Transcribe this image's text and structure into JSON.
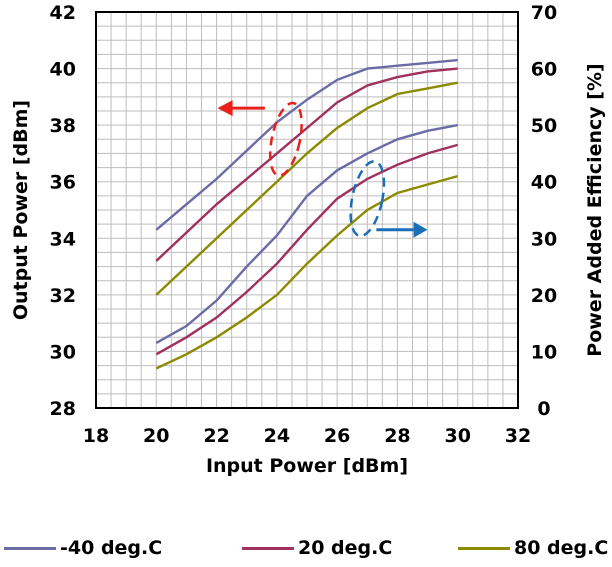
{
  "chart_data": {
    "type": "line",
    "xlabel": "Input Power [dBm]",
    "ylabel_left": "Output Power [dBm]",
    "ylabel_right": "Power Added Efficiency [%]",
    "xlim": [
      18,
      32
    ],
    "ylim_left": [
      28,
      42
    ],
    "ylim_right": [
      0,
      70
    ],
    "x_ticks": [
      "18",
      "20",
      "22",
      "24",
      "26",
      "28",
      "30",
      "32"
    ],
    "y_left_ticks": [
      "28",
      "30",
      "32",
      "34",
      "36",
      "38",
      "40",
      "42"
    ],
    "y_right_ticks": [
      "0",
      "10",
      "20",
      "30",
      "40",
      "50",
      "60",
      "70"
    ],
    "grid": true,
    "legend_position": "bottom",
    "colors": {
      "-40 deg.C": "#6b6ba6",
      "20 deg.C": "#a0305e",
      "80 deg.C": "#8c8a00"
    },
    "annotations": [
      {
        "text": "left-arrow",
        "marks": "Output Power curves (left axis)",
        "color": "#e8201a"
      },
      {
        "text": "right-arrow",
        "marks": "PAE curves (right axis)",
        "color": "#1a6fb8"
      }
    ],
    "series": [
      {
        "name": "-40 deg.C",
        "axis": "left",
        "x": [
          20,
          21,
          22,
          23,
          24,
          25,
          26,
          27,
          28,
          29,
          30
        ],
        "y": [
          34.3,
          35.2,
          36.1,
          37.1,
          38.1,
          38.9,
          39.6,
          40.0,
          40.1,
          40.2,
          40.3
        ]
      },
      {
        "name": "20 deg.C",
        "axis": "left",
        "x": [
          20,
          21,
          22,
          23,
          24,
          25,
          26,
          27,
          28,
          29,
          30
        ],
        "y": [
          33.2,
          34.2,
          35.2,
          36.1,
          37.0,
          37.9,
          38.8,
          39.4,
          39.7,
          39.9,
          40.0
        ]
      },
      {
        "name": "80 deg.C",
        "axis": "left",
        "x": [
          20,
          21,
          22,
          23,
          24,
          25,
          26,
          27,
          28,
          29,
          30
        ],
        "y": [
          32.0,
          33.0,
          34.0,
          35.0,
          36.0,
          37.0,
          37.9,
          38.6,
          39.1,
          39.3,
          39.5
        ]
      },
      {
        "name": "-40 deg.C",
        "axis": "right",
        "x": [
          20,
          21,
          22,
          23,
          24,
          25,
          26,
          27,
          28,
          29,
          30
        ],
        "y": [
          11.5,
          14.5,
          19.0,
          25.0,
          30.5,
          37.5,
          42.0,
          45.0,
          47.5,
          49.0,
          50.0
        ]
      },
      {
        "name": "20 deg.C",
        "axis": "right",
        "x": [
          20,
          21,
          22,
          23,
          24,
          25,
          26,
          27,
          28,
          29,
          30
        ],
        "y": [
          9.5,
          12.5,
          16.0,
          20.5,
          25.5,
          31.5,
          37.0,
          40.5,
          43.0,
          45.0,
          46.5
        ]
      },
      {
        "name": "80 deg.C",
        "axis": "right",
        "x": [
          20,
          21,
          22,
          23,
          24,
          25,
          26,
          27,
          28,
          29,
          30
        ],
        "y": [
          7.0,
          9.5,
          12.5,
          16.0,
          20.0,
          25.5,
          30.5,
          35.0,
          38.0,
          39.5,
          41.0
        ]
      }
    ]
  },
  "legend": [
    {
      "label": "-40 deg.C",
      "color": "#6b6ba6"
    },
    {
      "label": "20 deg.C",
      "color": "#a0305e"
    },
    {
      "label": "80 deg.C",
      "color": "#8c8a00"
    }
  ]
}
